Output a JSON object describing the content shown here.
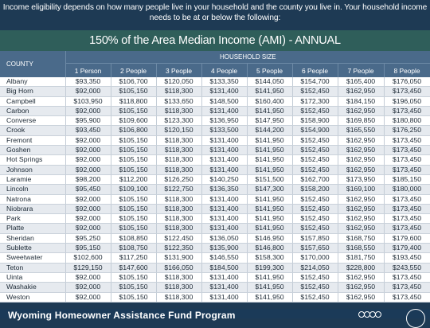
{
  "intro": {
    "line1": "Income eligibility depends on how many people live in your household and the county you live in. Your household income",
    "line2": "needs to be at or below the following:"
  },
  "banner": "150% of the Area Median Income (AMI) - ANNUAL",
  "table": {
    "county_header": "COUNTY",
    "household_header": "HOUSEHOLD SIZE",
    "columns": [
      "1 Person",
      "2 People",
      "3 People",
      "4 People",
      "5 People",
      "6 People",
      "7 People",
      "8 People"
    ],
    "rows": [
      {
        "county": "Albany",
        "values": [
          "$93,350",
          "$106,700",
          "$120,050",
          "$133,350",
          "$144,050",
          "$154,700",
          "$165,400",
          "$176,050"
        ]
      },
      {
        "county": "Big Horn",
        "values": [
          "$92,000",
          "$105,150",
          "$118,300",
          "$131,400",
          "$141,950",
          "$152,450",
          "$162,950",
          "$173,450"
        ]
      },
      {
        "county": "Campbell",
        "values": [
          "$103,950",
          "$118,800",
          "$133,650",
          "$148,500",
          "$160,400",
          "$172,300",
          "$184,150",
          "$196,050"
        ]
      },
      {
        "county": "Carbon",
        "values": [
          "$92,000",
          "$105,150",
          "$118,300",
          "$131,400",
          "$141,950",
          "$152,450",
          "$162,950",
          "$173,450"
        ]
      },
      {
        "county": "Converse",
        "values": [
          "$95,900",
          "$109,600",
          "$123,300",
          "$136,950",
          "$147,950",
          "$158,900",
          "$169,850",
          "$180,800"
        ]
      },
      {
        "county": "Crook",
        "values": [
          "$93,450",
          "$106,800",
          "$120,150",
          "$133,500",
          "$144,200",
          "$154,900",
          "$165,550",
          "$176,250"
        ]
      },
      {
        "county": "Fremont",
        "values": [
          "$92,000",
          "$105,150",
          "$118,300",
          "$131,400",
          "$141,950",
          "$152,450",
          "$162,950",
          "$173,450"
        ]
      },
      {
        "county": "Goshen",
        "values": [
          "$92,000",
          "$105,150",
          "$118,300",
          "$131,400",
          "$141,950",
          "$152,450",
          "$162,950",
          "$173,450"
        ]
      },
      {
        "county": "Hot Springs",
        "values": [
          "$92,000",
          "$105,150",
          "$118,300",
          "$131,400",
          "$141,950",
          "$152,450",
          "$162,950",
          "$173,450"
        ]
      },
      {
        "county": "Johnson",
        "values": [
          "$92,000",
          "$105,150",
          "$118,300",
          "$131,400",
          "$141,950",
          "$152,450",
          "$162,950",
          "$173,450"
        ]
      },
      {
        "county": "Laramie",
        "values": [
          "$98,200",
          "$112,200",
          "$126,250",
          "$140,250",
          "$151,500",
          "$162,700",
          "$173,950",
          "$185,150"
        ]
      },
      {
        "county": "Lincoln",
        "values": [
          "$95,450",
          "$109,100",
          "$122,750",
          "$136,350",
          "$147,300",
          "$158,200",
          "$169,100",
          "$180,000"
        ]
      },
      {
        "county": "Natrona",
        "values": [
          "$92,000",
          "$105,150",
          "$118,300",
          "$131,400",
          "$141,950",
          "$152,450",
          "$162,950",
          "$173,450"
        ]
      },
      {
        "county": "Niobrara",
        "values": [
          "$92,000",
          "$105,150",
          "$118,300",
          "$131,400",
          "$141,950",
          "$152,450",
          "$162,950",
          "$173,450"
        ]
      },
      {
        "county": "Park",
        "values": [
          "$92,000",
          "$105,150",
          "$118,300",
          "$131,400",
          "$141,950",
          "$152,450",
          "$162,950",
          "$173,450"
        ]
      },
      {
        "county": "Platte",
        "values": [
          "$92,000",
          "$105,150",
          "$118,300",
          "$131,400",
          "$141,950",
          "$152,450",
          "$162,950",
          "$173,450"
        ]
      },
      {
        "county": "Sheridan",
        "values": [
          "$95,250",
          "$108,850",
          "$122,450",
          "$136,050",
          "$146,950",
          "$157,850",
          "$168,750",
          "$179,600"
        ]
      },
      {
        "county": "Sublette",
        "values": [
          "$95,150",
          "$108,750",
          "$122,350",
          "$135,900",
          "$146,800",
          "$157,650",
          "$168,550",
          "$179,400"
        ]
      },
      {
        "county": "Sweetwater",
        "values": [
          "$102,600",
          "$117,250",
          "$131,900",
          "$146,550",
          "$158,300",
          "$170,000",
          "$181,750",
          "$193,450"
        ]
      },
      {
        "county": "Teton",
        "values": [
          "$129,150",
          "$147,600",
          "$166,050",
          "$184,500",
          "$199,300",
          "$214,050",
          "$228,800",
          "$243,550"
        ]
      },
      {
        "county": "Uinta",
        "values": [
          "$92,000",
          "$105,150",
          "$118,300",
          "$131,400",
          "$141,950",
          "$152,450",
          "$162,950",
          "$173,450"
        ]
      },
      {
        "county": "Washakie",
        "values": [
          "$92,000",
          "$105,150",
          "$118,300",
          "$131,400",
          "$141,950",
          "$152,450",
          "$162,950",
          "$173,450"
        ]
      },
      {
        "county": "Weston",
        "values": [
          "$92,000",
          "$105,150",
          "$118,300",
          "$131,400",
          "$141,950",
          "$152,450",
          "$162,950",
          "$173,450"
        ]
      }
    ]
  },
  "footer": {
    "program_title": "Wyoming Homeowner Assistance Fund Program"
  },
  "colors": {
    "header_bg": "#1e3a54",
    "banner_bg": "#2f5e5a",
    "table_header_bg": "#4a6a8a",
    "row_alt_bg": "#e6eaef"
  }
}
